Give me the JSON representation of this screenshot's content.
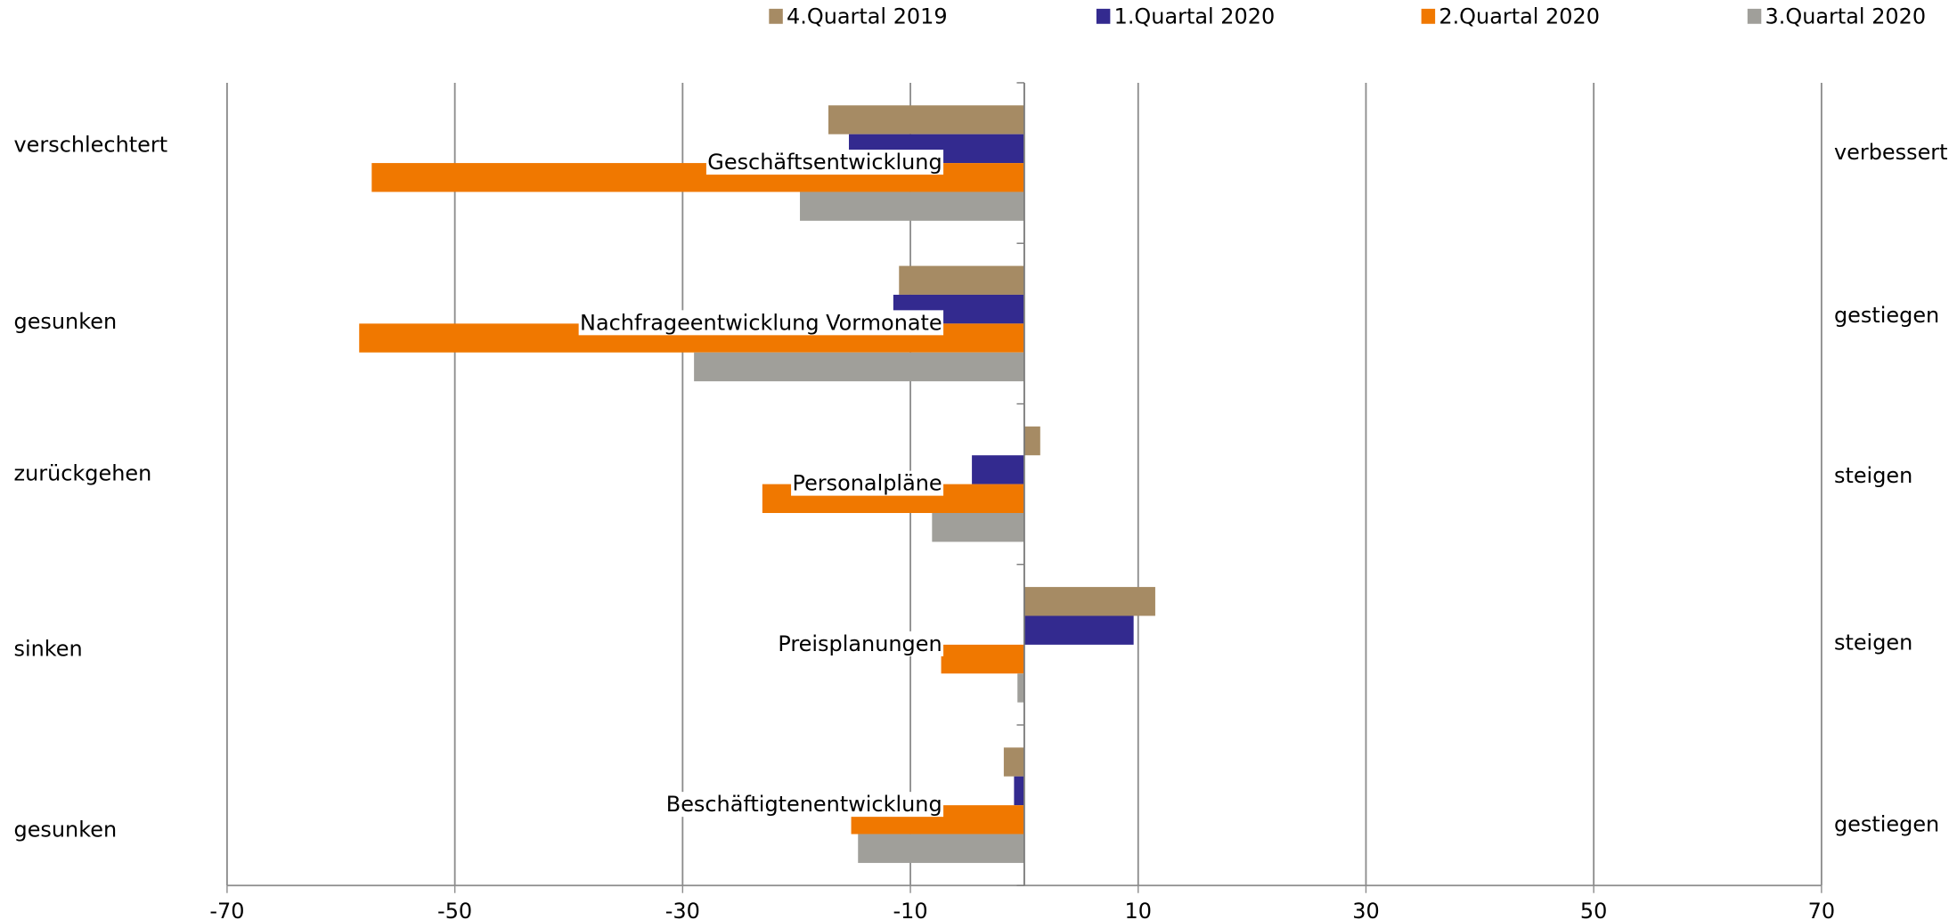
{
  "chart_data": {
    "type": "hbar",
    "categories": [
      "Geschäftsentwicklung",
      "Nachfrageentwicklung Vormonate",
      "Personalpläne",
      "Preisplanungen",
      "Beschäftigtenentwicklung"
    ],
    "left_labels": [
      "verschlechtert",
      "gesunken",
      "zurückgehen",
      "sinken",
      "gesunken"
    ],
    "right_labels": [
      "verbessert",
      "gestiegen",
      "steigen",
      "steigen",
      "gestiegen"
    ],
    "series": [
      {
        "name": "4.Quartal 2019",
        "color": "#a68b64",
        "values": [
          -17.2,
          -11.0,
          1.4,
          11.5,
          -1.8
        ]
      },
      {
        "name": "1.Quartal 2020",
        "color": "#332a8f",
        "values": [
          -15.4,
          -11.5,
          -4.6,
          9.6,
          -0.9
        ]
      },
      {
        "name": "2.Quartal 2020",
        "color": "#f07800",
        "values": [
          -57.3,
          -58.4,
          -23.0,
          -7.3,
          -15.2
        ]
      },
      {
        "name": "3.Quartal 2020",
        "color": "#a09f9a",
        "values": [
          -19.7,
          -29.0,
          -8.1,
          -0.6,
          -14.6
        ]
      }
    ],
    "xlim": [
      -70,
      70
    ],
    "xticks": [
      -70,
      -50,
      -30,
      -10,
      10,
      30,
      50,
      70
    ],
    "grid": true
  }
}
